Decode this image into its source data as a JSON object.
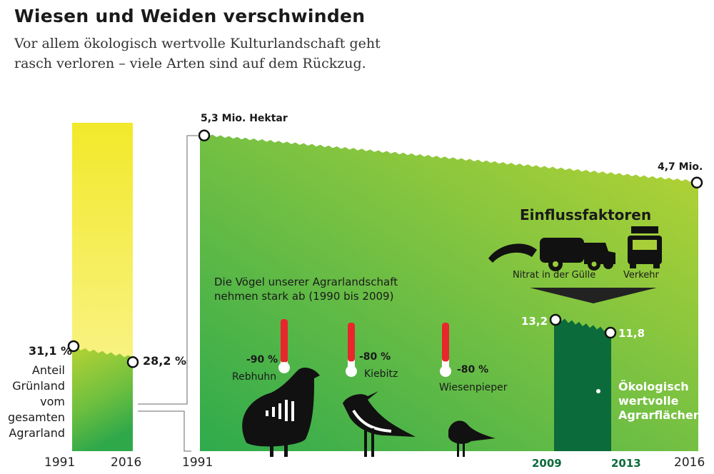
{
  "title": "Wiesen und Weiden verschwinden",
  "subtitle_lines": [
    "Vor allem ökologisch wertvolle Kulturlandschaft geht",
    "rasch verloren – viele Arten sind auf dem Rückzug."
  ],
  "chart_data": [
    {
      "type": "bar",
      "title": "Anteil Grünland vom gesamten Agrarland",
      "label_lines": [
        "Anteil",
        "Grünland",
        "vom",
        "gesamten",
        "Agrarland"
      ],
      "x": [
        "1991",
        "2016"
      ],
      "values": [
        31.1,
        28.2
      ],
      "value_labels": [
        "31,1 %",
        "28,2 %"
      ],
      "unit": "%",
      "ylim": [
        0,
        100
      ]
    },
    {
      "type": "area",
      "title": "Grünland",
      "x": [
        "1991",
        "2016"
      ],
      "values": [
        5.3,
        4.7
      ],
      "value_labels": [
        "5,3 Mio. Hektar",
        "4,7 Mio."
      ],
      "unit": "Mio. Hektar"
    },
    {
      "type": "area",
      "title": "Ökologisch wertvolle Agrarflächen",
      "label_lines": [
        "Ökologisch",
        "wertvolle",
        "Agrarflächen"
      ],
      "x": [
        "2009",
        "2013"
      ],
      "values": [
        13.2,
        11.8
      ],
      "value_labels": [
        "13,2",
        "11,8"
      ]
    },
    {
      "type": "bar",
      "title": "Die Vögel unserer Agrarlandschaft nehmen stark ab (1990 bis 2009)",
      "title_lines": [
        "Die Vögel unserer Agrarlandschaft",
        "nehmen stark ab (1990 bis 2009)"
      ],
      "categories": [
        "Rebhuhn",
        "Kiebitz",
        "Wiesenpieper"
      ],
      "values": [
        -90,
        -80,
        -80
      ],
      "value_labels": [
        "-90 %",
        "-80 %",
        "-80 %"
      ]
    }
  ],
  "factors": {
    "title": "Einflussfaktoren",
    "items": [
      "Nitrat in der Gülle",
      "Verkehr"
    ]
  },
  "colors": {
    "yellow": "#f4ec3a",
    "green_light": "#b5d334",
    "green": "#3fae49",
    "dark_green": "#0b6b3a",
    "red": "#e8262b"
  }
}
